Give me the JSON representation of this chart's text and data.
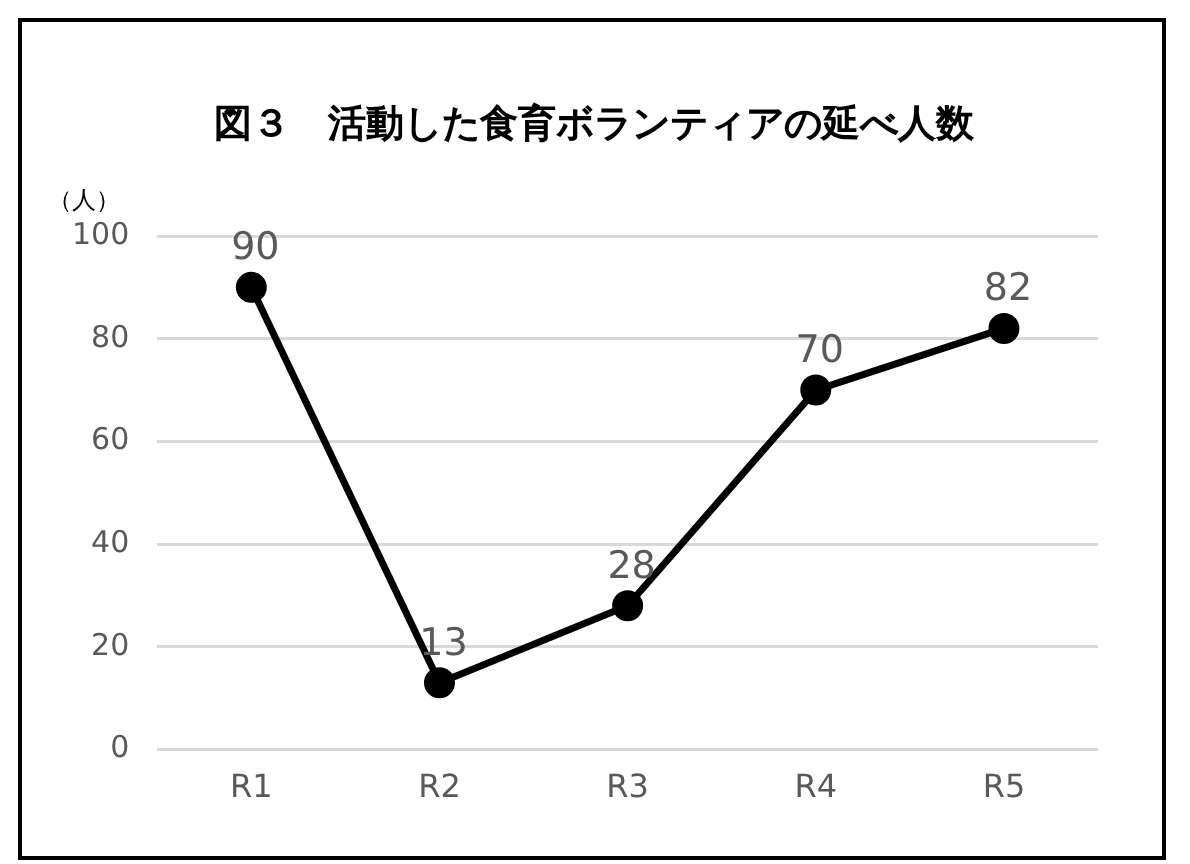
{
  "chart_data": {
    "type": "line",
    "title": "図３　活動した食育ボランティアの延べ人数",
    "ylabel": "（人）",
    "categories": [
      "R1",
      "R2",
      "R3",
      "R4",
      "R5"
    ],
    "series": [
      {
        "color": "#000000",
        "values": [
          90,
          13,
          28,
          70,
          82
        ]
      }
    ],
    "ylim": [
      0,
      100
    ],
    "yticks": [
      0,
      20,
      40,
      60,
      80,
      100
    ],
    "grid": "y",
    "legend": false,
    "marker": "circle",
    "line_style": "solid",
    "data_labels": true
  }
}
